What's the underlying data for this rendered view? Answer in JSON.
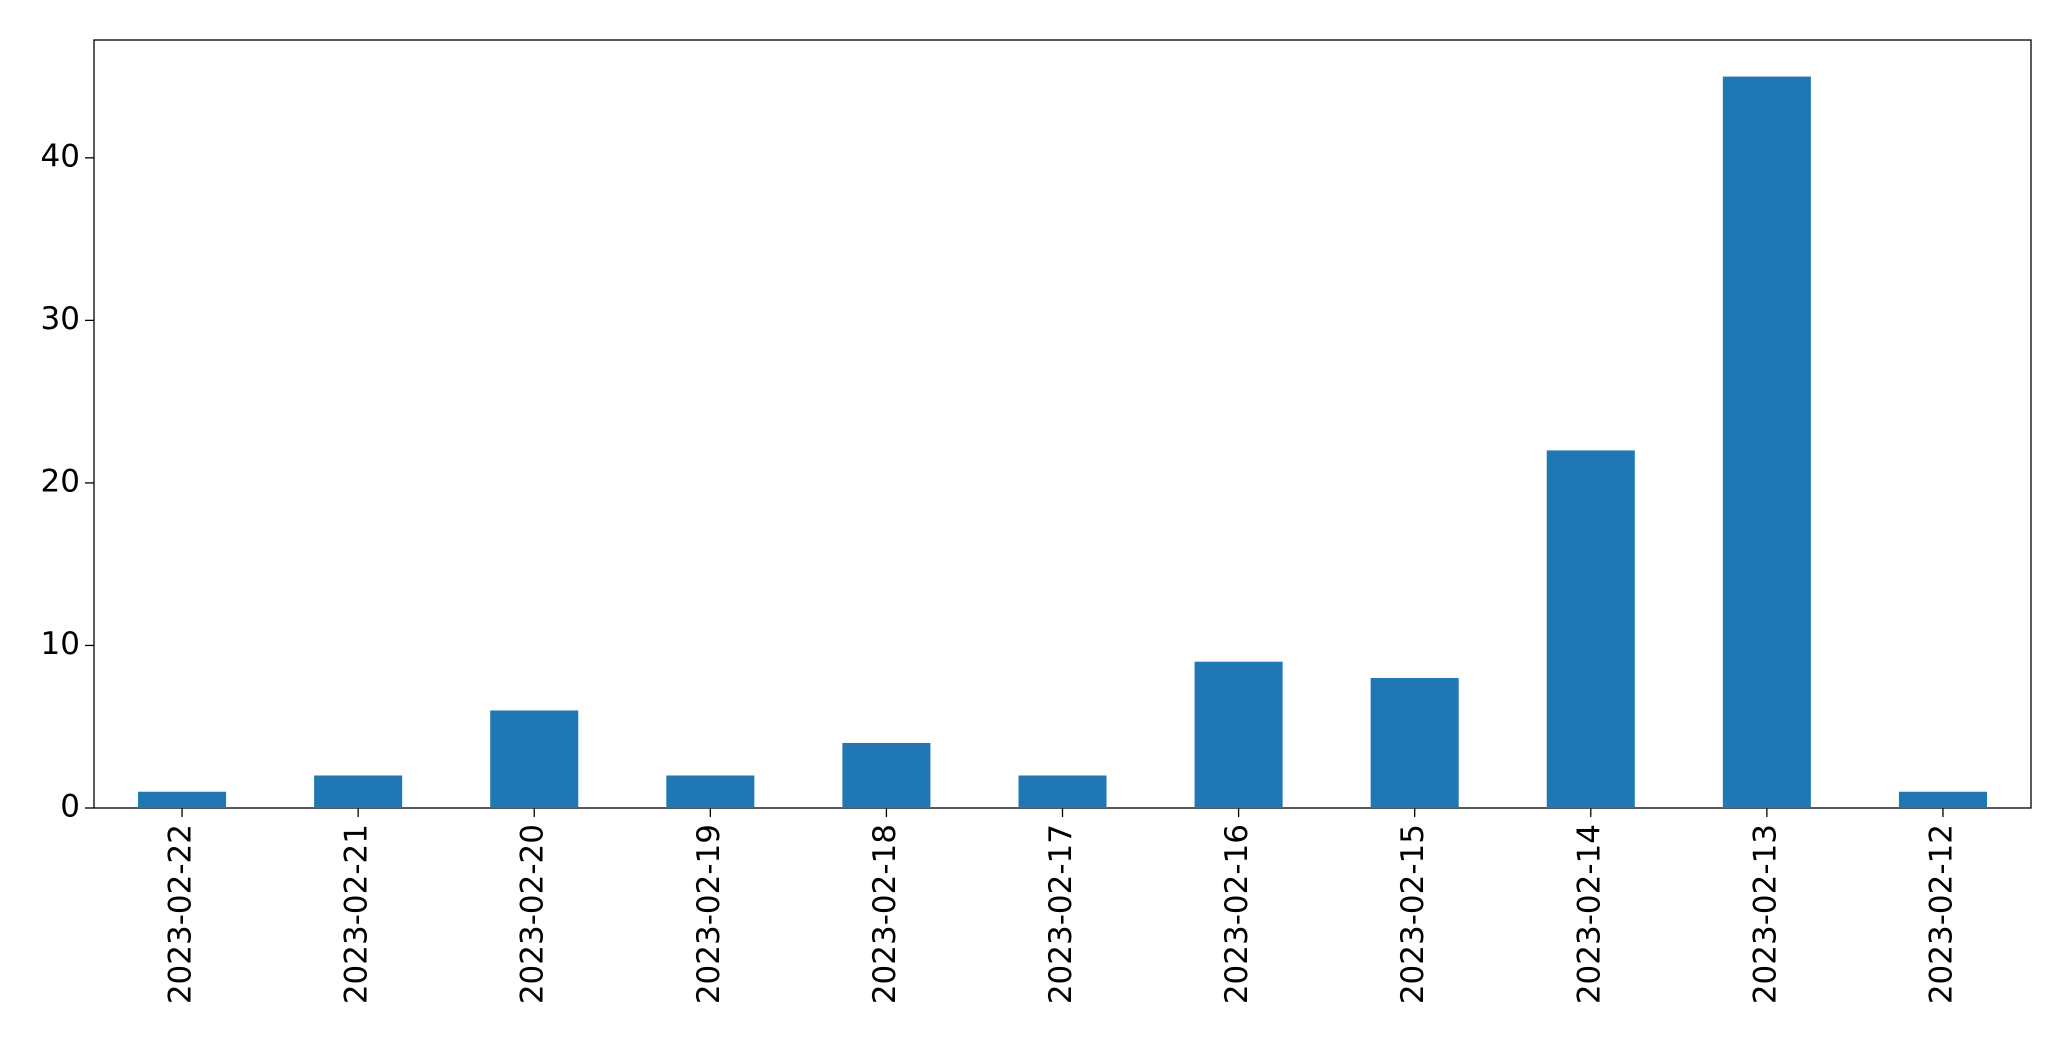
{
  "chart_data": {
    "type": "bar",
    "categories": [
      "2023-02-22",
      "2023-02-21",
      "2023-02-20",
      "2023-02-19",
      "2023-02-18",
      "2023-02-17",
      "2023-02-16",
      "2023-02-15",
      "2023-02-14",
      "2023-02-13",
      "2023-02-12"
    ],
    "values": [
      1,
      2,
      6,
      2,
      4,
      2,
      9,
      8,
      22,
      45,
      1
    ],
    "color": "#1f77b4",
    "ylim": [
      0,
      47.25
    ],
    "yticks": [
      0,
      10,
      20,
      30,
      40
    ],
    "grid": false
  }
}
